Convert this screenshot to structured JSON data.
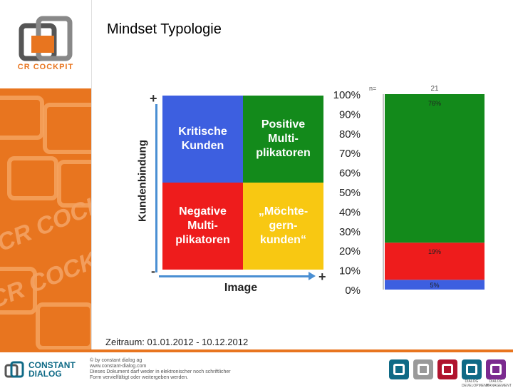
{
  "header": {
    "title": "Mindset Typologie"
  },
  "sidebar": {
    "logo_text": "CR COCKPIT",
    "watermark_text": "CR COCKPIT"
  },
  "matrix": {
    "quadrants": {
      "top_left": "Kritische\nKunden",
      "top_right": "Positive\nMulti-\nplikatoren",
      "bottom_left": "Negative\nMulti-\nplikatoren",
      "bottom_right": "„Möchte-\ngern-\nkunden“"
    },
    "ylabel": "Kundenbindung",
    "xlabel": "Image",
    "axis_plus_top": "+",
    "axis_minus": "-",
    "axis_plus_right": "+",
    "colors": {
      "top_left": "#3d5fe0",
      "top_right": "#138a1b",
      "bottom_left": "#ee1c1c",
      "bottom_right": "#f8c812"
    }
  },
  "chart_data": {
    "type": "bar",
    "stacked": true,
    "n_label": "n=",
    "categories": [
      "21"
    ],
    "series": [
      {
        "values": [
          5
        ],
        "label": "5%",
        "color": "#3d5fe0"
      },
      {
        "values": [
          19
        ],
        "label": "19%",
        "color": "#ee1c1c"
      },
      {
        "values": [
          76
        ],
        "label": "76%",
        "color": "#138a1b"
      }
    ],
    "ylim": [
      0,
      100
    ],
    "yticks": [
      "0%",
      "10%",
      "20%",
      "30%",
      "40%",
      "50%",
      "60%",
      "70%",
      "80%",
      "90%",
      "100%"
    ],
    "title": "",
    "xlabel": "",
    "ylabel": ""
  },
  "footnote": "Zeitraum: 01.01.2012 - 10.12.2012",
  "footer": {
    "brand_line1": "CONSTANT",
    "brand_line2": "DIALOG",
    "text": "© by constant dialog ag\nwww.constant-dialog.com\nDieses Dokument darf weder in elektronischer noch schriftlicher\nForm vervielfältigt oder weitergeben werden.",
    "badges": [
      {
        "label": "",
        "color": "#0f6a86"
      },
      {
        "label": "",
        "color": "#9a9a9a"
      },
      {
        "label": "",
        "color": "#b0142e"
      },
      {
        "label": "DIALOG DEVELOPMENT",
        "color": "#0f6a86"
      },
      {
        "label": "DIALOG MANAGEMENT",
        "color": "#7b2a8f"
      }
    ]
  }
}
